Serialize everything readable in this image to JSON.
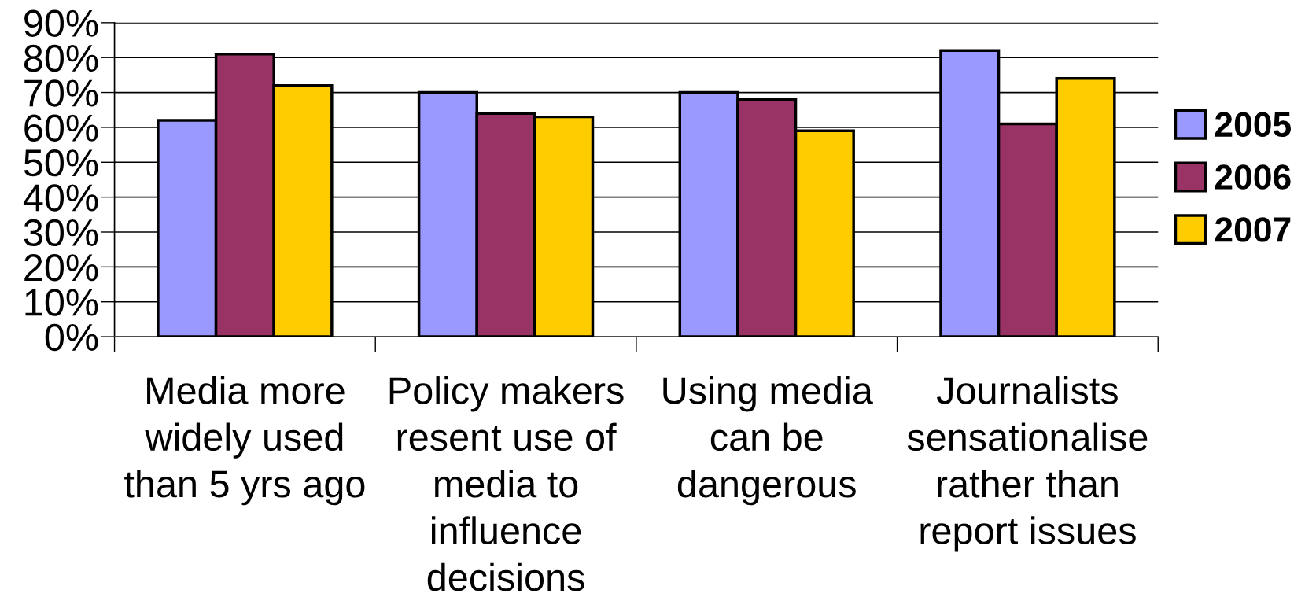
{
  "chart_data": {
    "type": "bar",
    "categories": [
      "Media more\nwidely used\nthan 5 yrs ago",
      "Policy makers\nresent use of\nmedia to\ninfluence\ndecisions",
      "Using media\ncan be\ndangerous",
      "Journalists\nsensationalise\nrather than\nreport issues"
    ],
    "series": [
      {
        "name": "2005",
        "color": "#9999ff",
        "values": [
          62,
          70,
          70,
          82
        ]
      },
      {
        "name": "2006",
        "color": "#993366",
        "values": [
          81,
          64,
          68,
          61
        ]
      },
      {
        "name": "2007",
        "color": "#ffcc00",
        "values": [
          72,
          63,
          59,
          74
        ]
      }
    ],
    "ylim": [
      0,
      90
    ],
    "yticks": [
      {
        "value": 0,
        "label": "0%"
      },
      {
        "value": 10,
        "label": "10%"
      },
      {
        "value": 20,
        "label": "20%"
      },
      {
        "value": 30,
        "label": "30%"
      },
      {
        "value": 40,
        "label": "40%"
      },
      {
        "value": 50,
        "label": "50%"
      },
      {
        "value": 60,
        "label": "60%"
      },
      {
        "value": 70,
        "label": "70%"
      },
      {
        "value": 80,
        "label": "80%"
      },
      {
        "value": 90,
        "label": "90%"
      }
    ],
    "grid": "y",
    "legend": "right"
  }
}
